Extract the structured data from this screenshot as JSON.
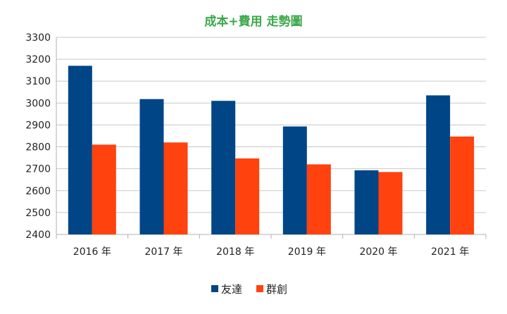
{
  "chart_data": {
    "type": "bar",
    "title": "成本+費用 走勢圖",
    "xlabel": "",
    "ylabel": "",
    "categories": [
      "2016 年",
      "2017 年",
      "2018 年",
      "2019 年",
      "2020 年",
      "2021 年"
    ],
    "series": [
      {
        "name": "友達",
        "color": "#004586",
        "values": [
          3170,
          3018,
          3010,
          2893,
          2693,
          3035
        ]
      },
      {
        "name": "群創",
        "color": "#ff420e",
        "values": [
          2810,
          2820,
          2747,
          2720,
          2685,
          2847
        ]
      }
    ],
    "ylim": [
      2400,
      3300
    ],
    "yticks": [
      2400,
      2500,
      2600,
      2700,
      2800,
      2900,
      3000,
      3100,
      3200,
      3300
    ],
    "grid": true,
    "legend_position": "bottom"
  }
}
